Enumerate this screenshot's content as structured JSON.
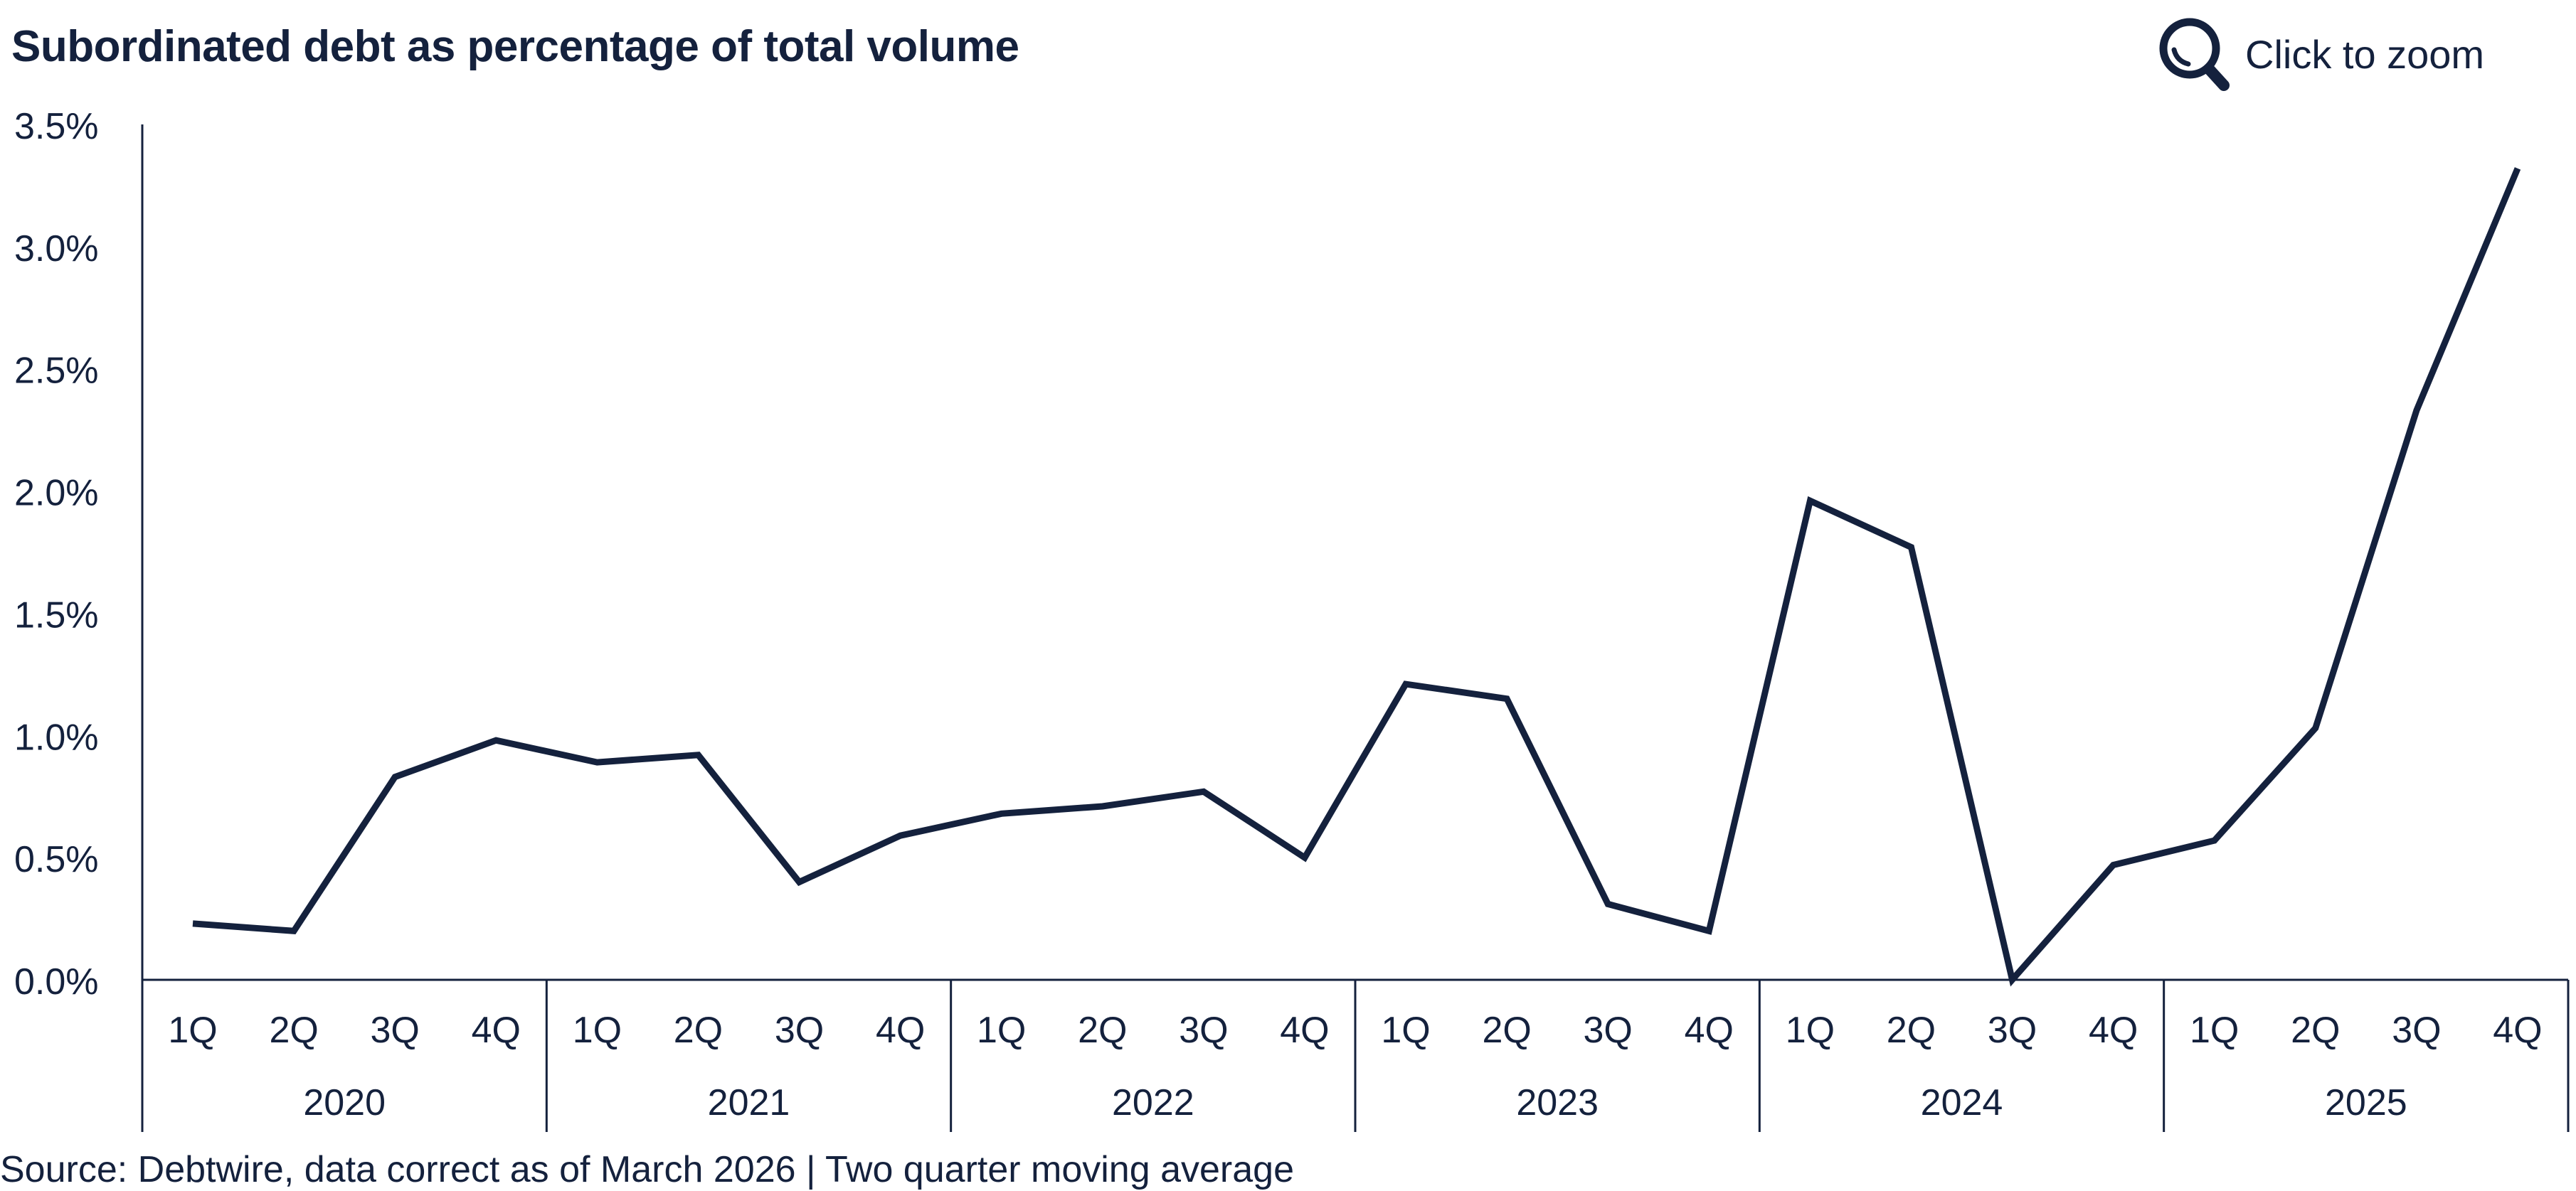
{
  "header": {
    "title": "Subordinated debt as percentage of total volume",
    "zoom_label": "Click to zoom",
    "zoom_icon": "magnifier-icon"
  },
  "footer": {
    "source": "Source: Debtwire, data correct as of March 2026 | Two quarter moving average"
  },
  "colors": {
    "line": "#14213d",
    "axis": "#14213d",
    "text": "#14213d"
  },
  "chart_data": {
    "type": "line",
    "title": "Subordinated debt as percentage of total volume",
    "xlabel": "",
    "ylabel": "",
    "ylim": [
      0,
      3.5
    ],
    "y_ticks": [
      "0.0%",
      "0.5%",
      "1.0%",
      "1.5%",
      "2.0%",
      "2.5%",
      "3.0%",
      "3.5%"
    ],
    "y_tick_values": [
      0,
      0.5,
      1.0,
      1.5,
      2.0,
      2.5,
      3.0,
      3.5
    ],
    "grid": false,
    "years": [
      "2020",
      "2021",
      "2022",
      "2023",
      "2024",
      "2025"
    ],
    "quarters": [
      "1Q",
      "2Q",
      "3Q",
      "4Q"
    ],
    "series": [
      {
        "values": [
          0.23,
          0.2,
          0.83,
          0.98,
          0.89,
          0.92,
          0.4,
          0.59,
          0.68,
          0.71,
          0.77,
          0.5,
          1.21,
          1.15,
          0.31,
          0.2,
          1.96,
          1.77,
          0.0,
          0.47,
          0.57,
          1.03,
          2.33,
          3.32
        ]
      }
    ]
  }
}
